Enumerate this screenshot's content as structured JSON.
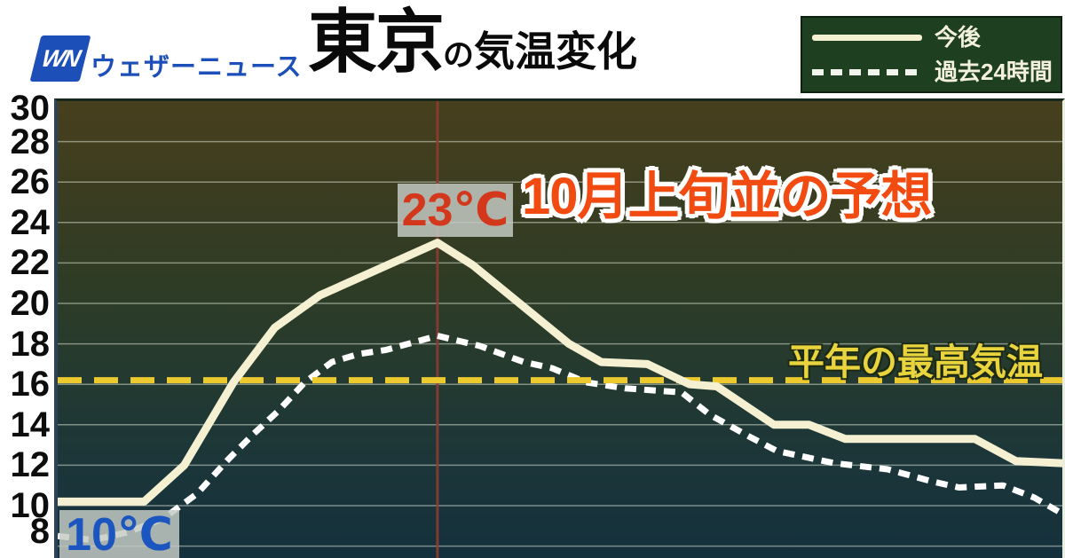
{
  "header": {
    "logo_mark": "WN",
    "brand": "ウェザーニュース",
    "title_city": "東京",
    "title_particle": "の",
    "title_rest": "気温変化"
  },
  "legend": {
    "items": [
      {
        "label": "今後",
        "style": "solid"
      },
      {
        "label": "過去24時間",
        "style": "dashed"
      }
    ]
  },
  "annotations": {
    "peak_label": "23℃",
    "start_label": "10℃",
    "headline": "10月上旬並の予想",
    "avg_line_label": "平年の最高気温"
  },
  "chart_data": {
    "type": "line",
    "title": "東京の気温変化",
    "y_ticks": [
      30,
      28,
      26,
      24,
      22,
      20,
      18,
      16,
      14,
      12,
      10,
      8
    ],
    "y_unit": "℃",
    "y_range": [
      7.4,
      30
    ],
    "x_range_percent": [
      0,
      100
    ],
    "grid": true,
    "legend_position": "top-right",
    "reference_lines": [
      {
        "name": "平年の最高気温",
        "orientation": "horizontal",
        "value": 16.2,
        "color": "#ecc92f",
        "style": "dashed"
      },
      {
        "name": "peak-time-marker",
        "orientation": "vertical",
        "percent": 37.8,
        "color": "#8c3c30",
        "style": "solid"
      }
    ],
    "point_annotations": [
      {
        "text": "23℃",
        "series": "今後",
        "percent": 37.8,
        "value": 23
      },
      {
        "text": "10℃",
        "series": "今後",
        "percent": 0,
        "value": 10
      }
    ],
    "series": [
      {
        "name": "今後",
        "style": "solid",
        "color": "#f6f0d2",
        "points": [
          [
            0,
            10.2
          ],
          [
            8.6,
            10.2
          ],
          [
            12.6,
            12
          ],
          [
            17.5,
            16.1
          ],
          [
            21.6,
            18.8
          ],
          [
            26.1,
            20.4
          ],
          [
            37.8,
            23
          ],
          [
            41.3,
            21.9
          ],
          [
            50.9,
            18
          ],
          [
            54.1,
            17.1
          ],
          [
            58.7,
            17
          ],
          [
            62.9,
            16
          ],
          [
            65.6,
            15.9
          ],
          [
            71.3,
            14
          ],
          [
            74.8,
            14
          ],
          [
            78.4,
            13.3
          ],
          [
            91.3,
            13.3
          ],
          [
            95.4,
            12.2
          ],
          [
            100,
            12.1
          ]
        ]
      },
      {
        "name": "過去24時間",
        "style": "dashed",
        "color": "#ffffff",
        "points": [
          [
            0,
            8.5
          ],
          [
            3.5,
            8.3
          ],
          [
            7.1,
            8.7
          ],
          [
            10.6,
            9.4
          ],
          [
            13.9,
            10.6
          ],
          [
            17,
            12.3
          ],
          [
            19.4,
            13.5
          ],
          [
            22,
            14.7
          ],
          [
            24.6,
            16.1
          ],
          [
            27.3,
            17.1
          ],
          [
            30,
            17.5
          ],
          [
            32.7,
            17.7
          ],
          [
            37.8,
            18.4
          ],
          [
            42,
            17.9
          ],
          [
            46.4,
            17.1
          ],
          [
            49.2,
            16.8
          ],
          [
            52.6,
            16.1
          ],
          [
            56.5,
            15.8
          ],
          [
            62.1,
            15.6
          ],
          [
            64.9,
            14.5
          ],
          [
            68.9,
            13.4
          ],
          [
            71.6,
            12.7
          ],
          [
            77.3,
            12.1
          ],
          [
            82.6,
            11.8
          ],
          [
            87,
            11.2
          ],
          [
            89.7,
            10.9
          ],
          [
            94.1,
            11
          ],
          [
            97.2,
            10.4
          ],
          [
            100,
            9.6
          ]
        ]
      }
    ],
    "colors": {
      "background_top": "#473f1d",
      "background_bottom": "#14303c",
      "gridline": "#e2e7da",
      "avg_line": "#ecc92f",
      "time_marker": "#8c3c30",
      "forecast_line": "#f6f0d2",
      "past_line": "#ffffff",
      "headline_text": "#f24b12",
      "peak_text": "#d4381c",
      "start_text": "#1b55c0",
      "brand_blue": "#1d4fb8"
    }
  }
}
